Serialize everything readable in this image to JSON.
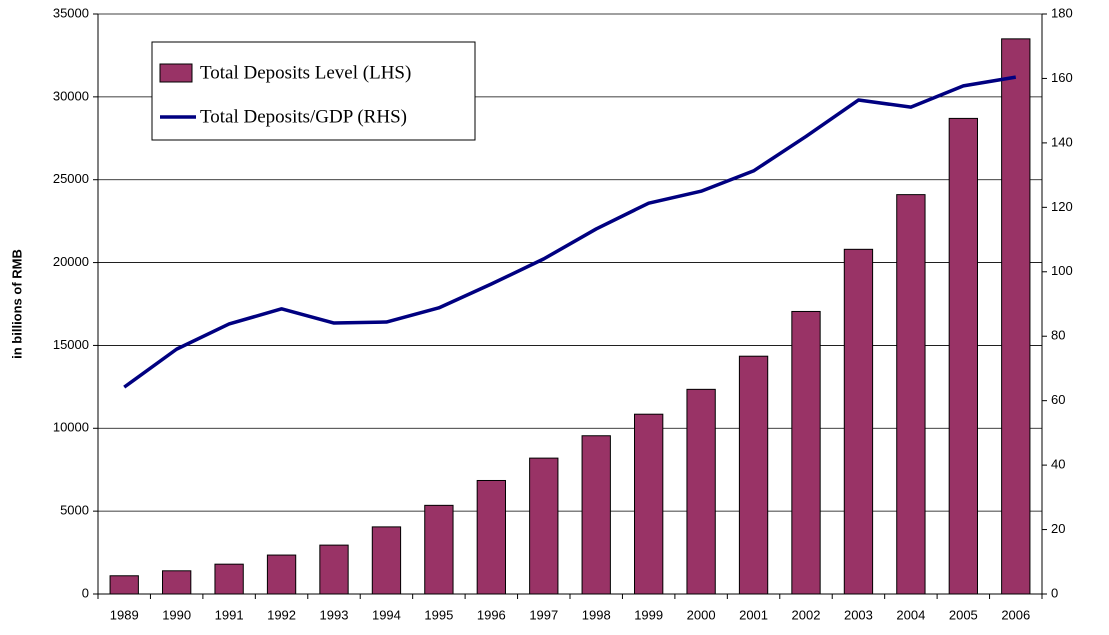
{
  "chart_data": {
    "type": "bar",
    "y_label": "in billions of RMB",
    "categories": [
      "1989",
      "1990",
      "1991",
      "1992",
      "1993",
      "1994",
      "1995",
      "1996",
      "1997",
      "1998",
      "1999",
      "2000",
      "2001",
      "2002",
      "2003",
      "2004",
      "2005",
      "2006"
    ],
    "series": [
      {
        "name": "Total Deposits Level (LHS)",
        "type": "bar",
        "color": "#993366",
        "values": [
          1100,
          1400,
          1800,
          2350,
          2950,
          4050,
          5350,
          6850,
          8200,
          9550,
          10850,
          12350,
          14350,
          17050,
          20800,
          24100,
          28700,
          33500
        ]
      },
      {
        "name": "Total Deposits/GDP (RHS)",
        "type": "line",
        "axis": "y2",
        "color": "#000080",
        "values": [
          64.2,
          76,
          83.8,
          88.5,
          84.1,
          84.4,
          88.8,
          96.2,
          104,
          113.3,
          121.3,
          125,
          131.3,
          142,
          153.3,
          151.1,
          157.7,
          160.4
        ]
      }
    ],
    "ylim": [
      0,
      35000
    ],
    "yticks": [
      0,
      5000,
      10000,
      15000,
      20000,
      25000,
      30000,
      35000
    ],
    "y2lim": [
      0,
      180
    ],
    "y2ticks": [
      0,
      20,
      40,
      60,
      80,
      100,
      120,
      140,
      160,
      180
    ],
    "grid": true,
    "legend": "top-left"
  }
}
